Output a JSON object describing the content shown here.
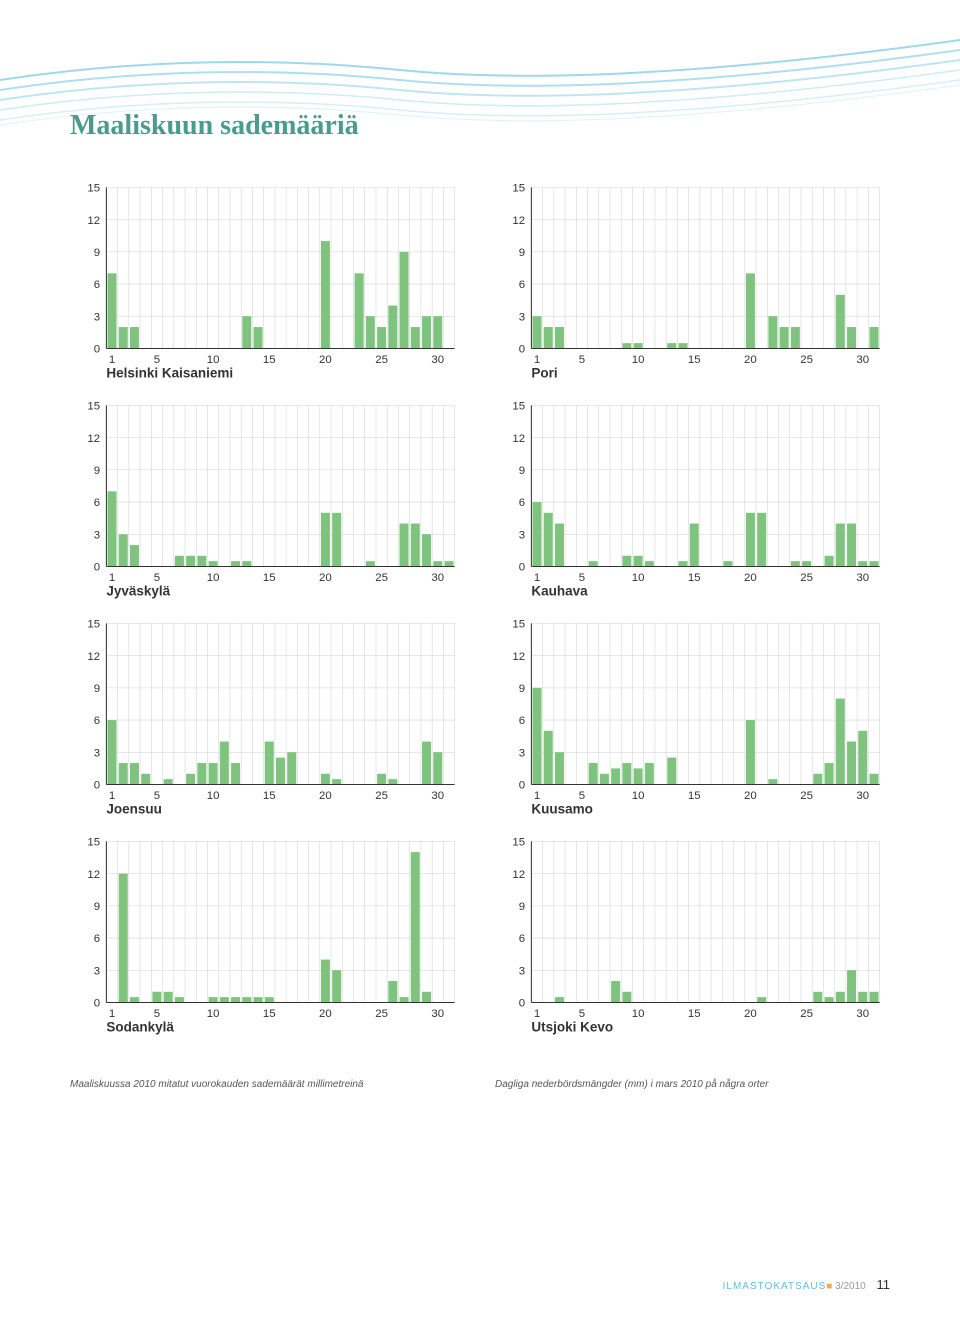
{
  "title": "Maaliskuun sademääriä",
  "caption_fi": "Maaliskuussa 2010 mitatut vuorokauden sademäärät millimetreinä",
  "caption_sv": "Dagliga nederbördsmängder (mm) i mars 2010 på några orter",
  "footer_brand": "ILMASTOKATSAUS",
  "footer_issue": "3/2010",
  "footer_page": "11",
  "chart_style": {
    "type": "bar",
    "bar_color": "#7ec47e",
    "grid_color": "#d0d0d0",
    "axis_color": "#333333",
    "background": "#ffffff",
    "ylim": [
      0,
      15
    ],
    "yticks": [
      0,
      3,
      6,
      9,
      12,
      15
    ],
    "xlim": [
      1,
      31
    ],
    "xticks": [
      1,
      5,
      10,
      15,
      20,
      25,
      30
    ],
    "tick_fontsize": 11,
    "label_fontsize": 13,
    "bar_width_ratio": 0.8
  },
  "charts": [
    {
      "station": "Helsinki Kaisaniemi",
      "values": [
        7,
        2,
        2,
        0,
        0,
        0,
        0,
        0,
        0,
        0,
        0,
        0,
        3,
        2,
        0,
        0,
        0,
        0,
        0,
        10,
        0,
        0,
        7,
        3,
        2,
        4,
        9,
        2,
        3,
        3,
        0
      ]
    },
    {
      "station": "Pori",
      "values": [
        3,
        2,
        2,
        0,
        0,
        0,
        0,
        0,
        0.5,
        0.5,
        0,
        0,
        0.5,
        0.5,
        0,
        0,
        0,
        0,
        0,
        7,
        0,
        3,
        2,
        2,
        0,
        0,
        0,
        5,
        2,
        0,
        2
      ]
    },
    {
      "station": "Jyväskylä",
      "values": [
        7,
        3,
        2,
        0,
        0,
        0,
        1,
        1,
        1,
        0.5,
        0,
        0.5,
        0.5,
        0,
        0,
        0,
        0,
        0,
        0,
        5,
        5,
        0,
        0,
        0.5,
        0,
        0,
        4,
        4,
        3,
        0.5,
        0.5
      ]
    },
    {
      "station": "Kauhava",
      "values": [
        6,
        5,
        4,
        0,
        0,
        0.5,
        0,
        0,
        1,
        1,
        0.5,
        0,
        0,
        0.5,
        4,
        0,
        0,
        0.5,
        0,
        5,
        5,
        0,
        0,
        0.5,
        0.5,
        0,
        1,
        4,
        4,
        0.5,
        0.5
      ]
    },
    {
      "station": "Joensuu",
      "values": [
        6,
        2,
        2,
        1,
        0,
        0.5,
        0,
        1,
        2,
        2,
        4,
        2,
        0,
        0,
        4,
        2.5,
        3,
        0,
        0,
        1,
        0.5,
        0,
        0,
        0,
        1,
        0.5,
        0,
        0,
        4,
        3,
        0
      ]
    },
    {
      "station": "Kuusamo",
      "values": [
        9,
        5,
        3,
        0,
        0,
        2,
        1,
        1.5,
        2,
        1.5,
        2,
        0,
        2.5,
        0,
        0,
        0,
        0,
        0,
        0,
        6,
        0,
        0.5,
        0,
        0,
        0,
        1,
        2,
        8,
        4,
        5,
        1
      ]
    },
    {
      "station": "Sodankylä",
      "values": [
        0,
        12,
        0.5,
        0,
        1,
        1,
        0.5,
        0,
        0,
        0.5,
        0.5,
        0.5,
        0.5,
        0.5,
        0.5,
        0,
        0,
        0,
        0,
        4,
        3,
        0,
        0,
        0,
        0,
        2,
        0.5,
        14,
        1,
        0,
        0
      ]
    },
    {
      "station": "Utsjoki Kevo",
      "values": [
        0,
        0,
        0.5,
        0,
        0,
        0,
        0,
        2,
        1,
        0,
        0,
        0,
        0,
        0,
        0,
        0,
        0,
        0,
        0,
        0,
        0.5,
        0,
        0,
        0,
        0,
        1,
        0.5,
        1,
        3,
        1,
        1
      ]
    }
  ]
}
